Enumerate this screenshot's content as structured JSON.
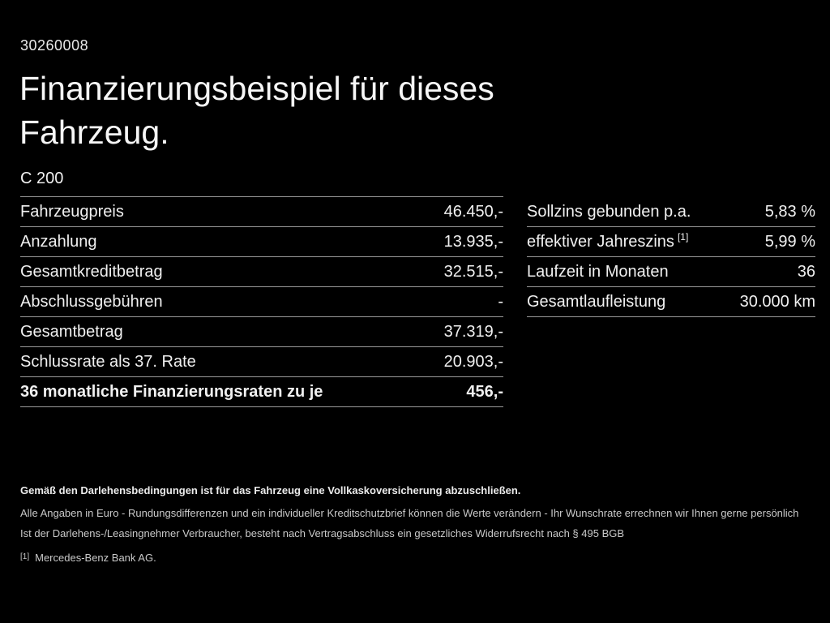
{
  "header": {
    "offer_id": "30260008",
    "title_line1": "Finanzierungsbeispiel für dieses",
    "title_line2": "Fahrzeug."
  },
  "vehicle": {
    "model": "C 200"
  },
  "left_table": {
    "rows": [
      {
        "label": "Fahrzeugpreis",
        "value": "46.450,-"
      },
      {
        "label": "Anzahlung",
        "value": "13.935,-"
      },
      {
        "label": "Gesamtkreditbetrag",
        "value": "32.515,-"
      },
      {
        "label": "Abschlussgebühren",
        "value": "-"
      },
      {
        "label": "Gesamtbetrag",
        "value": "37.319,-"
      },
      {
        "label": "Schlussrate als 37. Rate",
        "value": "20.903,-"
      },
      {
        "label": "36 monatliche Finanzierungsraten zu je",
        "value": "456,-"
      }
    ]
  },
  "right_table": {
    "rows": [
      {
        "label": "Sollzins gebunden p.a.",
        "value": "5,83 %"
      },
      {
        "label": "effektiver Jahreszins",
        "footnote": "[1]",
        "value": "5,99 %"
      },
      {
        "label": "Laufzeit in Monaten",
        "value": "36"
      },
      {
        "label": "Gesamtlaufleistung",
        "value": "30.000 km"
      }
    ]
  },
  "footer": {
    "insurance_note": "Gemäß den Darlehensbedingungen ist für das Fahrzeug eine Vollkaskoversicherung abzuschließen.",
    "disclaimer_line1": "Alle Angaben in Euro - Rundungsdifferenzen und ein individueller Kreditschutzbrief können die Werte verändern - Ihr Wunschrate errechnen wir Ihnen gerne persönlich",
    "disclaimer_line2": "Ist der Darlehens-/Leasingnehmer Verbraucher, besteht nach Vertragsabschluss ein gesetzliches Widerrufsrecht nach § 495 BGB",
    "footnote_marker": "[1]",
    "footnote_text": "Mercedes-Benz Bank AG."
  },
  "colors": {
    "background": "#000000",
    "text_primary": "#f4f4f4",
    "text_secondary": "#c9c9c9",
    "separator": "#9a9a9a"
  }
}
